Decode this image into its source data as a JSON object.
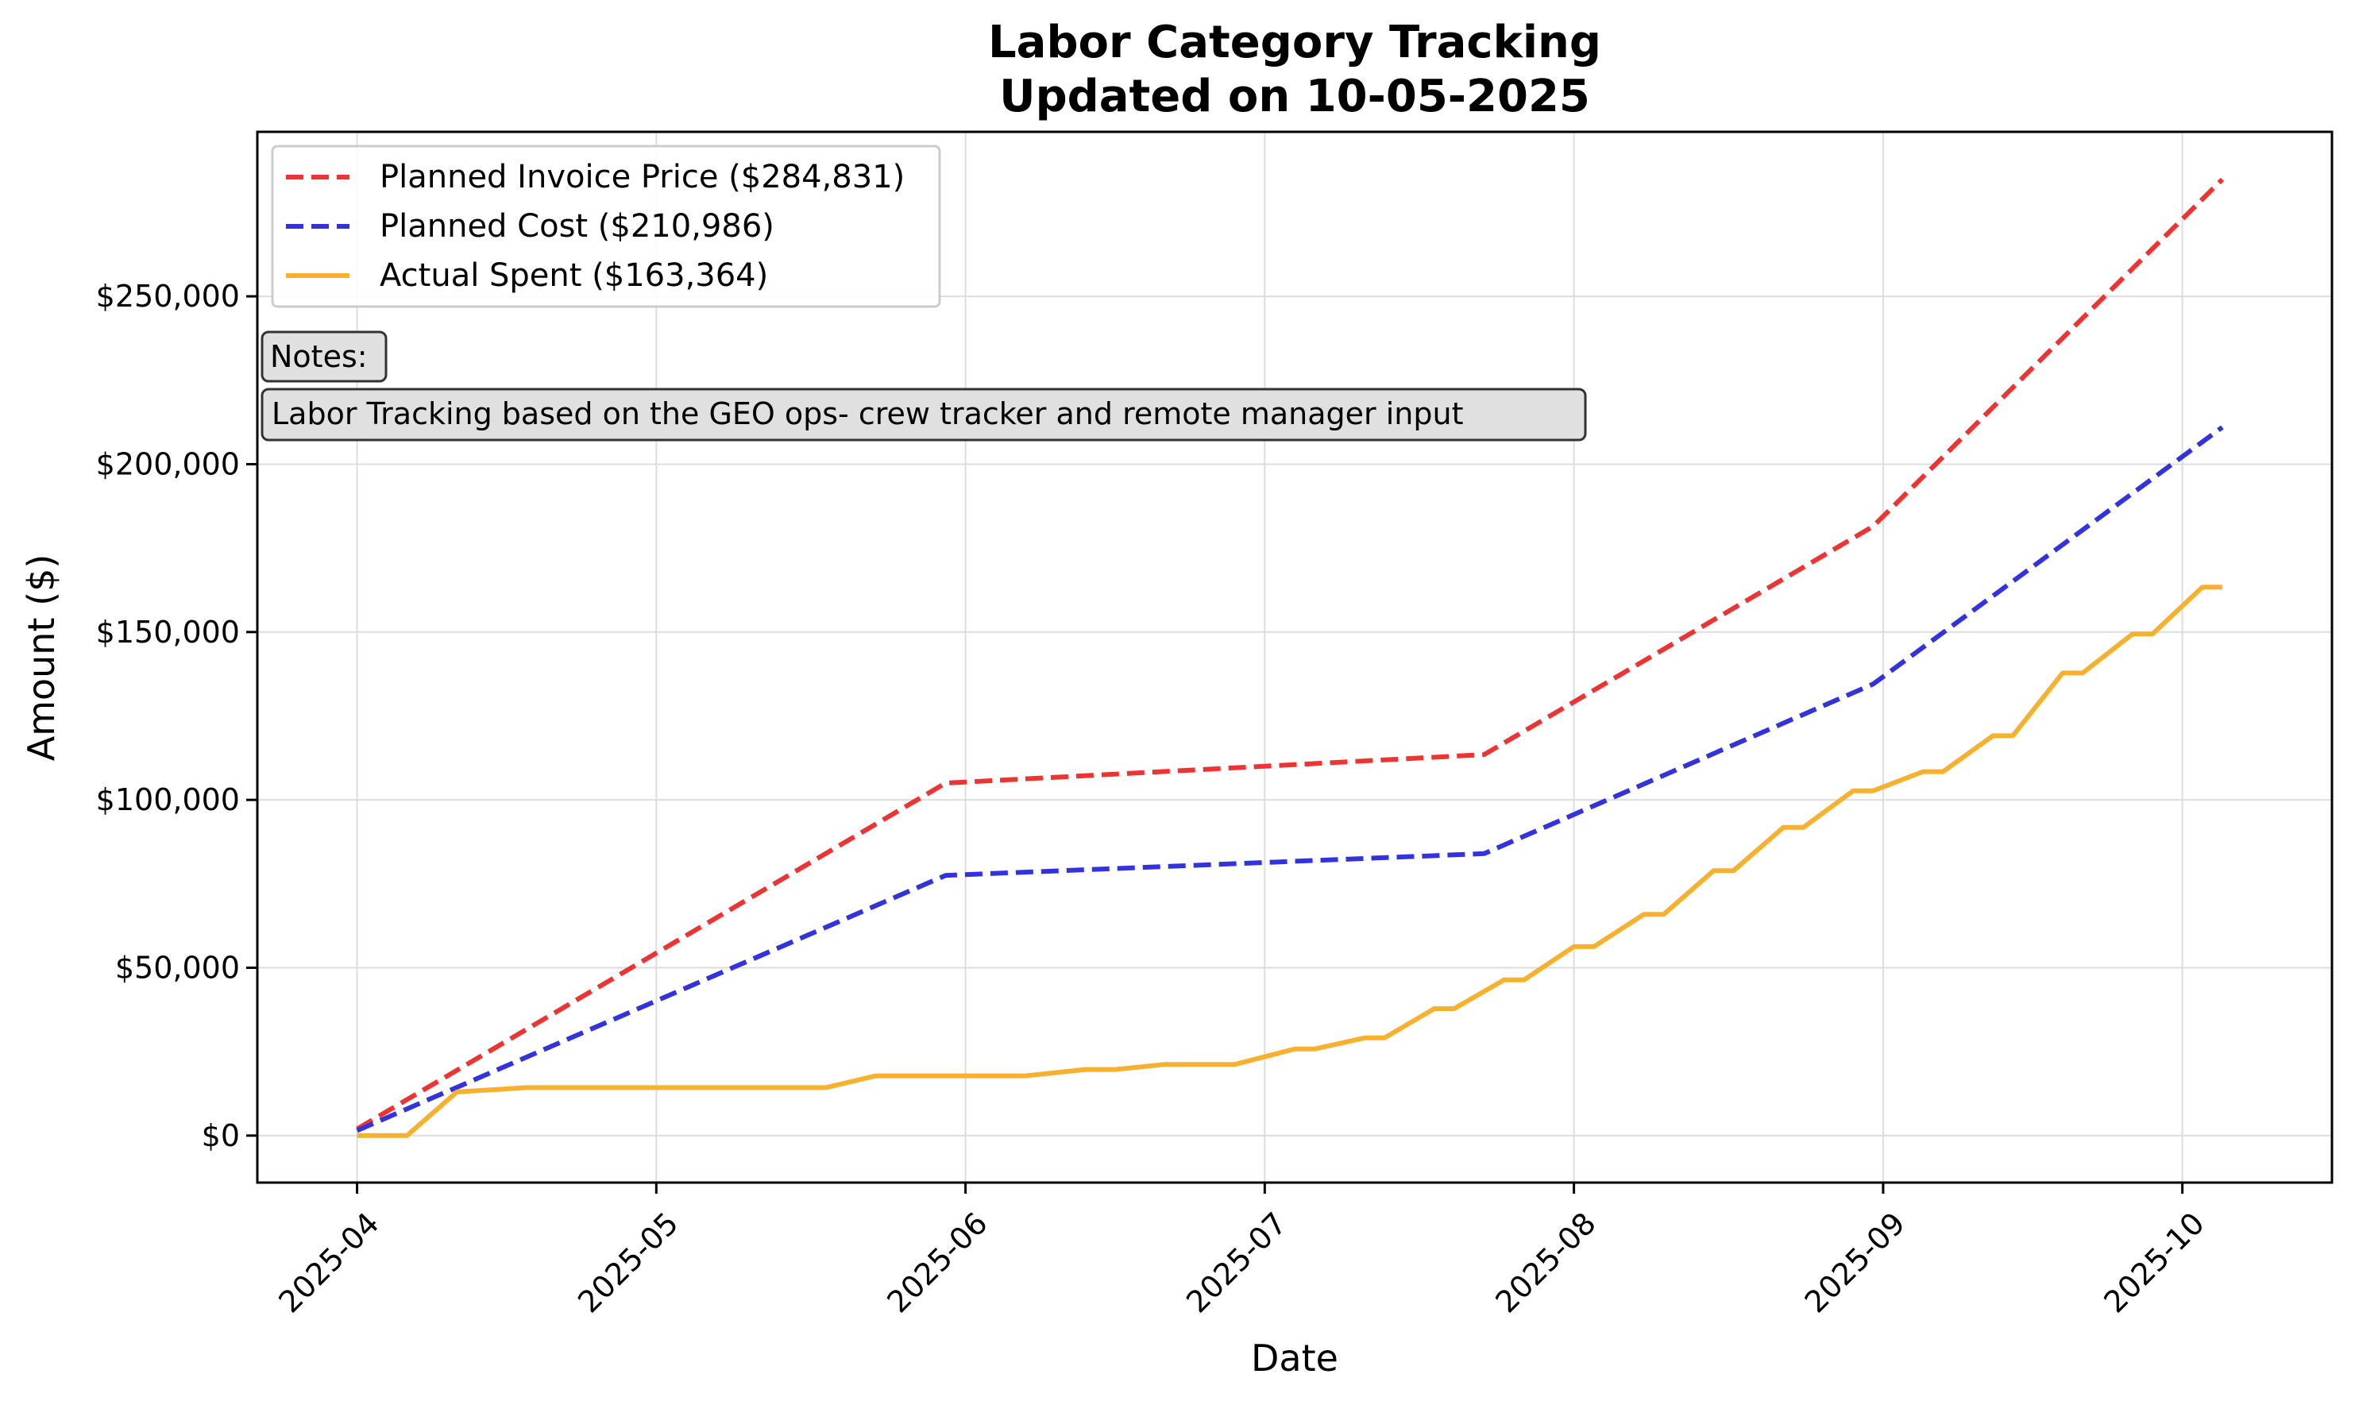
{
  "chart_data": {
    "type": "line",
    "title": "Labor Category Tracking",
    "subtitle": "Updated on 10-05-2025",
    "xlabel": "Date",
    "ylabel": "Amount ($)",
    "x_ticks": [
      "2025-04",
      "2025-05",
      "2025-06",
      "2025-07",
      "2025-08",
      "2025-09",
      "2025-10"
    ],
    "y_ticks": [
      "$0",
      "$50,000",
      "$100,000",
      "$150,000",
      "$200,000",
      "$250,000"
    ],
    "ylim": [
      -14000,
      299000
    ],
    "xlim": [
      "2025-03-22",
      "2025-10-16"
    ],
    "grid": true,
    "legend_position": "top-left",
    "series": [
      {
        "name": "Planned Invoice Price ($284,831)",
        "color": "#ee3333",
        "style": "dashed",
        "points": [
          [
            "2025-04-01",
            2000
          ],
          [
            "2025-05-30",
            105000
          ],
          [
            "2025-07-23",
            113500
          ],
          [
            "2025-08-31",
            181500
          ],
          [
            "2025-10-05",
            284831
          ]
        ]
      },
      {
        "name": "Planned Cost ($210,986)",
        "color": "#3333dd",
        "style": "dashed",
        "points": [
          [
            "2025-04-01",
            1500
          ],
          [
            "2025-05-30",
            77500
          ],
          [
            "2025-07-23",
            84000
          ],
          [
            "2025-08-31",
            134500
          ],
          [
            "2025-10-05",
            210986
          ]
        ]
      },
      {
        "name": "Actual Spent ($163,364)",
        "color": "#f7b12f",
        "style": "solid",
        "points": [
          [
            "2025-04-01",
            0
          ],
          [
            "2025-04-06",
            0
          ],
          [
            "2025-04-11",
            13000
          ],
          [
            "2025-04-18",
            14300
          ],
          [
            "2025-05-18",
            14300
          ],
          [
            "2025-05-23",
            17800
          ],
          [
            "2025-06-07",
            17800
          ],
          [
            "2025-06-13",
            19700
          ],
          [
            "2025-06-16",
            19700
          ],
          [
            "2025-06-21",
            21200
          ],
          [
            "2025-06-28",
            21200
          ],
          [
            "2025-07-04",
            25800
          ],
          [
            "2025-07-06",
            25800
          ],
          [
            "2025-07-11",
            29100
          ],
          [
            "2025-07-13",
            29100
          ],
          [
            "2025-07-18",
            37800
          ],
          [
            "2025-07-20",
            37800
          ],
          [
            "2025-07-25",
            46400
          ],
          [
            "2025-07-27",
            46400
          ],
          [
            "2025-08-01",
            56300
          ],
          [
            "2025-08-03",
            56300
          ],
          [
            "2025-08-08",
            65900
          ],
          [
            "2025-08-10",
            65900
          ],
          [
            "2025-08-15",
            78900
          ],
          [
            "2025-08-17",
            78900
          ],
          [
            "2025-08-22",
            91800
          ],
          [
            "2025-08-24",
            91800
          ],
          [
            "2025-08-29",
            102700
          ],
          [
            "2025-08-31",
            102700
          ],
          [
            "2025-09-05",
            108400
          ],
          [
            "2025-09-07",
            108400
          ],
          [
            "2025-09-12",
            119100
          ],
          [
            "2025-09-14",
            119100
          ],
          [
            "2025-09-19",
            137800
          ],
          [
            "2025-09-21",
            137800
          ],
          [
            "2025-09-26",
            149400
          ],
          [
            "2025-09-28",
            149400
          ],
          [
            "2025-10-03",
            163364
          ],
          [
            "2025-10-05",
            163364
          ]
        ]
      }
    ],
    "notes": {
      "heading": "Notes:",
      "text": "Labor Tracking based on the GEO ops- crew tracker and remote manager input"
    }
  }
}
